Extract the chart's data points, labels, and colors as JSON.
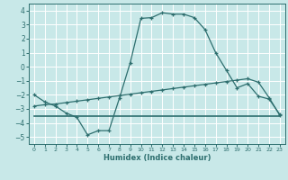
{
  "xlabel": "Humidex (Indice chaleur)",
  "ylabel": "",
  "bg_color": "#c8e8e8",
  "grid_color": "#ffffff",
  "line_color": "#2d6e6e",
  "xlim": [
    -0.5,
    23.5
  ],
  "ylim": [
    -5.5,
    4.5
  ],
  "xticks": [
    0,
    1,
    2,
    3,
    4,
    5,
    6,
    7,
    8,
    9,
    10,
    11,
    12,
    13,
    14,
    15,
    16,
    17,
    18,
    19,
    20,
    21,
    22,
    23
  ],
  "yticks": [
    -5,
    -4,
    -3,
    -2,
    -1,
    0,
    1,
    2,
    3,
    4
  ],
  "line1_x": [
    0,
    1,
    2,
    3,
    4,
    5,
    6,
    7,
    8,
    9,
    10,
    11,
    12,
    13,
    14,
    15,
    16,
    17,
    18,
    19,
    20,
    21,
    22,
    23
  ],
  "line1_y": [
    -2.0,
    -2.5,
    -2.8,
    -3.3,
    -3.6,
    -4.85,
    -4.55,
    -4.55,
    -2.2,
    0.3,
    3.45,
    3.5,
    3.85,
    3.75,
    3.75,
    3.5,
    2.65,
    1.0,
    -0.25,
    -1.5,
    -1.2,
    -2.1,
    -2.3,
    -3.4
  ],
  "line2_x": [
    0,
    23
  ],
  "line2_y": [
    -3.5,
    -3.5
  ],
  "line3_x": [
    0,
    1,
    2,
    3,
    4,
    5,
    6,
    7,
    8,
    9,
    10,
    11,
    12,
    13,
    14,
    15,
    16,
    17,
    18,
    19,
    20,
    21,
    22,
    23
  ],
  "line3_y": [
    -2.8,
    -2.7,
    -2.65,
    -2.55,
    -2.45,
    -2.35,
    -2.25,
    -2.15,
    -2.05,
    -1.95,
    -1.85,
    -1.75,
    -1.65,
    -1.55,
    -1.45,
    -1.35,
    -1.25,
    -1.15,
    -1.05,
    -0.95,
    -0.85,
    -1.1,
    -2.2,
    -3.45
  ]
}
